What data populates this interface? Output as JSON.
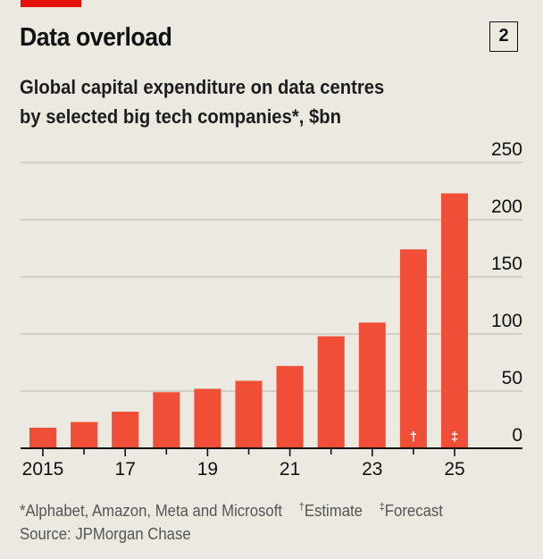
{
  "header": {
    "title": "Data overload",
    "chart_number": "2",
    "subtitle_line1": "Global capital expenditure on data centres",
    "subtitle_line2": "by selected big tech companies*, $bn"
  },
  "footer": {
    "note_companies": "*Alphabet, Amazon, Meta and Microsoft",
    "note_estimate_mark": "†",
    "note_estimate": "Estimate",
    "note_forecast_mark": "‡",
    "note_forecast": "Forecast",
    "source": "Source: JPMorgan Chase"
  },
  "colors": {
    "bar": "#f04e37",
    "brand_red": "#e3120b",
    "background": "#ebe9e0",
    "gridline": "#c9c7be",
    "axis": "#121212"
  },
  "chart_data": {
    "type": "bar",
    "title": "Data overload",
    "subtitle": "Global capital expenditure on data centres by selected big tech companies*, $bn",
    "xlabel": "",
    "ylabel": "$bn",
    "categories": [
      "2015",
      "2016",
      "2017",
      "2018",
      "2019",
      "2020",
      "2021",
      "2022",
      "2023",
      "2024",
      "2025"
    ],
    "x_tick_labels": [
      "2015",
      "",
      "17",
      "",
      "19",
      "",
      "21",
      "",
      "23",
      "",
      "25"
    ],
    "values": [
      18,
      23,
      32,
      49,
      52,
      59,
      72,
      98,
      110,
      174,
      223
    ],
    "bar_markers": [
      "",
      "",
      "",
      "",
      "",
      "",
      "",
      "",
      "",
      "†",
      "‡"
    ],
    "ylim": [
      0,
      250
    ],
    "y_ticks": [
      0,
      50,
      100,
      150,
      200,
      250
    ],
    "y_axis_side": "right",
    "grid": true,
    "legend": "none"
  }
}
